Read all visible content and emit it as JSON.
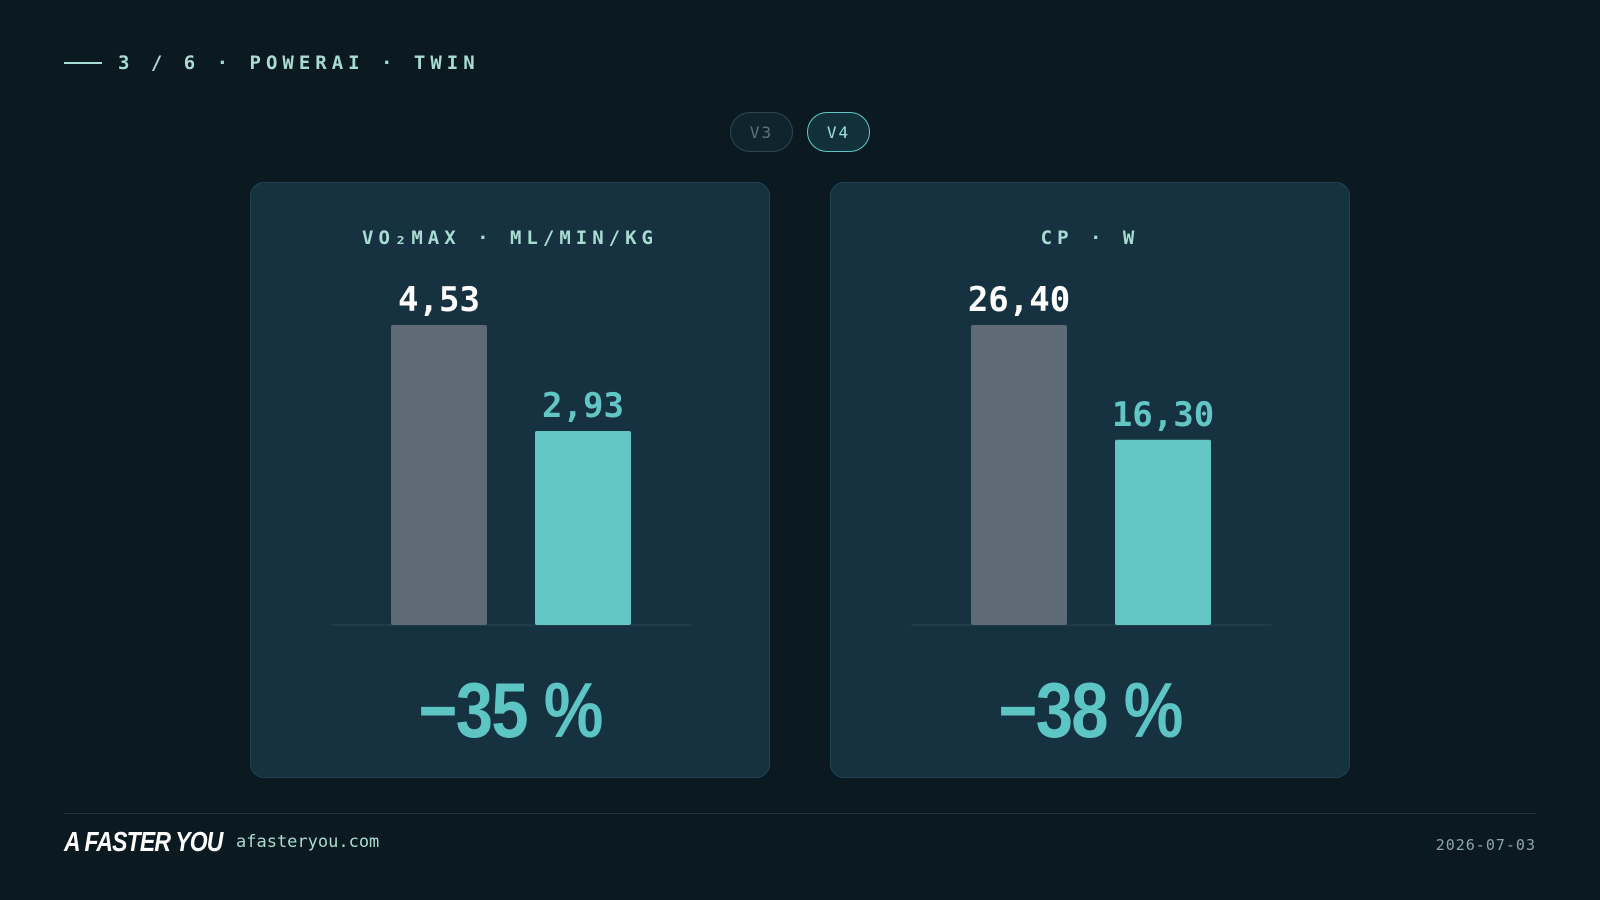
{
  "header": {
    "text": "3 / 6 · POWERAI · TWIN"
  },
  "toggle": {
    "options": [
      "V3",
      "V4"
    ],
    "selected": "V4"
  },
  "colors": {
    "before": "#5e6b77",
    "after": "#62c6c4",
    "value_before": "#ffffff",
    "value_after": "#62c6c4"
  },
  "chart_data": [
    {
      "type": "bar",
      "title": "VO₂MAX · ML/MIN/KG",
      "categories": [
        "",
        ""
      ],
      "values": [
        4.53,
        2.93
      ],
      "value_labels": [
        "4,53",
        "2,93"
      ],
      "delta": "−35 %"
    },
    {
      "type": "bar",
      "title": "CP · W",
      "categories": [
        "",
        ""
      ],
      "values": [
        26.4,
        16.3
      ],
      "value_labels": [
        "26,40",
        "16,30"
      ],
      "delta": "−38 %"
    }
  ],
  "footer": {
    "logo": "A FASTER YOU",
    "site": "afasteryou.com",
    "date": "2026-07-03"
  }
}
